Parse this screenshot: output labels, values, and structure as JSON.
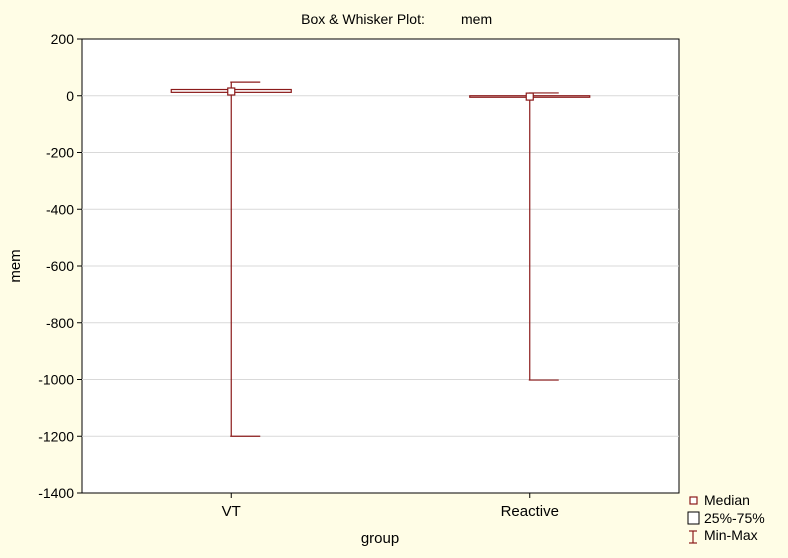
{
  "chart_data": {
    "type": "box",
    "title": "Box & Whisker Plot:",
    "variable": "mem",
    "xlabel": "group",
    "ylabel": "mem",
    "ylim": [
      -1400,
      200
    ],
    "yticks": [
      200,
      0,
      -200,
      -400,
      -600,
      -800,
      -1000,
      -1200,
      -1400
    ],
    "grid": true,
    "legend_position": "bottom-right",
    "categories": [
      "VT",
      "Reactive"
    ],
    "boxes": [
      {
        "category": "VT",
        "median": 15,
        "q1": 12,
        "q3": 22,
        "min": -1200,
        "max": 48
      },
      {
        "category": "Reactive",
        "median": -3,
        "q1": -3,
        "q3": 0,
        "min": -1002,
        "max": 10
      }
    ],
    "legend": [
      {
        "symbol": "median",
        "label": "Median"
      },
      {
        "symbol": "box",
        "label": "25%-75%"
      },
      {
        "symbol": "whisker",
        "label": "Min-Max"
      }
    ],
    "colors": {
      "series": "#8b1a1a",
      "background": "#fffde6",
      "plot_bg": "#ffffff",
      "grid": "#d9d9d9"
    }
  }
}
